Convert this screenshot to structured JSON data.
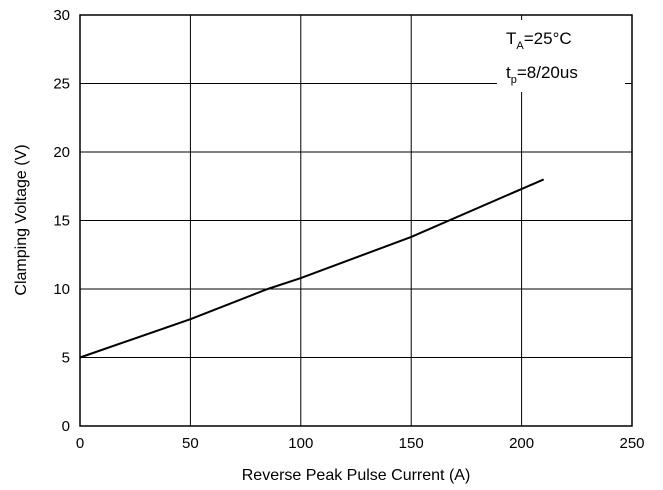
{
  "chart_data": {
    "type": "line",
    "title": "",
    "xlabel": "Reverse Peak Pulse Current (A)",
    "ylabel": "Clamping Voltage (V)",
    "xlim": [
      0,
      250
    ],
    "ylim": [
      0,
      30
    ],
    "xticks": [
      0,
      50,
      100,
      150,
      200,
      250
    ],
    "yticks": [
      0,
      5,
      10,
      15,
      20,
      25,
      30
    ],
    "xtick_labels": [
      "0",
      "50",
      "100",
      "150",
      "200",
      "250"
    ],
    "ytick_labels": [
      "0",
      "5",
      "10",
      "15",
      "20",
      "25",
      "30"
    ],
    "grid": true,
    "series": [
      {
        "x": [
          0,
          50,
          85,
          100,
          150,
          210
        ],
        "y": [
          5,
          7.8,
          10,
          10.8,
          13.8,
          18
        ],
        "color": "#000000"
      }
    ],
    "annotations": {
      "line1": {
        "main": "T",
        "sub": "A",
        "rest": "=25°C"
      },
      "line2": {
        "main": "t",
        "sub": "p",
        "rest": "=8/20us"
      }
    }
  }
}
